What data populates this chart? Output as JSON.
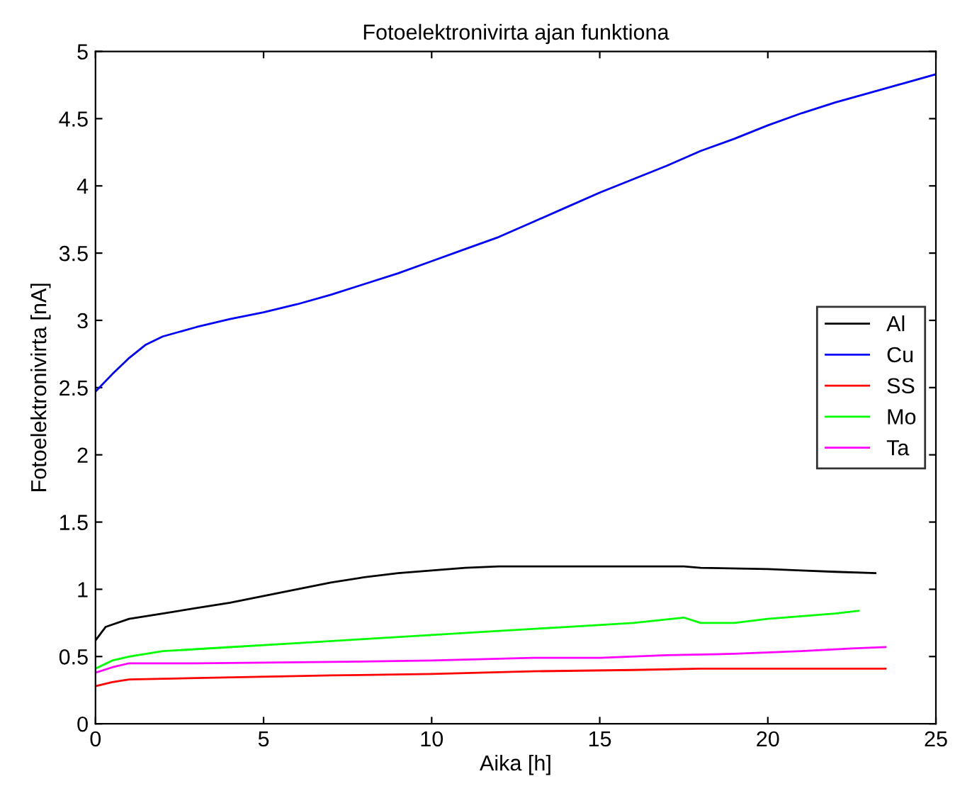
{
  "chart_data": {
    "type": "line",
    "title": "Fotoelektronivirta ajan funktiona",
    "xlabel": "Aika [h]",
    "ylabel": "Fotoelektronivirta [nA]",
    "xlim": [
      0,
      25
    ],
    "ylim": [
      0,
      5
    ],
    "xticks": [
      0,
      5,
      10,
      15,
      20,
      25
    ],
    "yticks": [
      0,
      0.5,
      1,
      1.5,
      2,
      2.5,
      3,
      3.5,
      4,
      4.5,
      5
    ],
    "legend": "right",
    "grid": false,
    "series": [
      {
        "name": "Al",
        "color": "#000000",
        "x": [
          0,
          0.3,
          1,
          2,
          3,
          4,
          5,
          6,
          7,
          8,
          9,
          10,
          11,
          12,
          15,
          17.5,
          18,
          20,
          21,
          22,
          23.2
        ],
        "values": [
          0.62,
          0.72,
          0.78,
          0.82,
          0.86,
          0.9,
          0.95,
          1.0,
          1.05,
          1.09,
          1.12,
          1.14,
          1.16,
          1.17,
          1.17,
          1.17,
          1.16,
          1.15,
          1.14,
          1.13,
          1.12
        ]
      },
      {
        "name": "Cu",
        "color": "#0000ff",
        "x": [
          0,
          0.5,
          1,
          1.5,
          2,
          3,
          4,
          5,
          6,
          7,
          8,
          9,
          10,
          11,
          12,
          13,
          14,
          15,
          16,
          17,
          18,
          19,
          20,
          21,
          22,
          23,
          24,
          25
        ],
        "values": [
          2.47,
          2.6,
          2.72,
          2.82,
          2.88,
          2.95,
          3.01,
          3.06,
          3.12,
          3.19,
          3.27,
          3.35,
          3.44,
          3.53,
          3.62,
          3.73,
          3.84,
          3.95,
          4.05,
          4.15,
          4.26,
          4.35,
          4.45,
          4.54,
          4.62,
          4.69,
          4.76,
          4.83
        ]
      },
      {
        "name": "SS",
        "color": "#ff0000",
        "x": [
          0,
          0.5,
          1,
          3,
          7,
          10,
          13,
          16,
          18,
          23.5
        ],
        "values": [
          0.28,
          0.31,
          0.33,
          0.34,
          0.36,
          0.37,
          0.39,
          0.4,
          0.41,
          0.41
        ]
      },
      {
        "name": "Mo",
        "color": "#00ff00",
        "x": [
          0,
          0.5,
          1,
          2,
          4,
          6,
          8,
          10,
          12,
          14,
          16,
          17.5,
          18,
          19,
          20,
          22,
          22.7
        ],
        "values": [
          0.41,
          0.47,
          0.5,
          0.54,
          0.57,
          0.6,
          0.63,
          0.66,
          0.69,
          0.72,
          0.75,
          0.79,
          0.75,
          0.75,
          0.78,
          0.82,
          0.84
        ]
      },
      {
        "name": "Ta",
        "color": "#ff00ff",
        "x": [
          0,
          0.5,
          1,
          3,
          7,
          10,
          13,
          15,
          17,
          19,
          21,
          22.5,
          23.5
        ],
        "values": [
          0.38,
          0.42,
          0.45,
          0.45,
          0.46,
          0.47,
          0.49,
          0.49,
          0.51,
          0.52,
          0.54,
          0.56,
          0.57
        ]
      }
    ]
  }
}
